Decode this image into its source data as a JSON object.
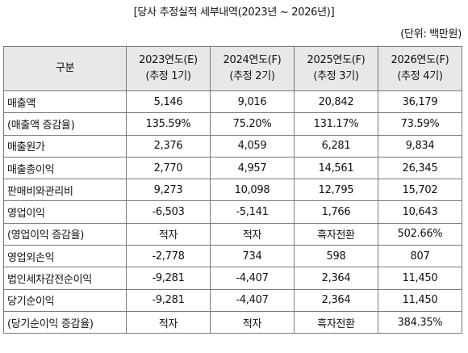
{
  "caption": "[당사 추정실적 세부내역(2023년 ~ 2026년)]",
  "unit_note": "(단위: 백만원)",
  "table": {
    "header": {
      "label": "구분",
      "columns": [
        {
          "year": "2023연도(E)",
          "note": "(추정 1기)"
        },
        {
          "year": "2024연도(F)",
          "note": "(추정 2기)"
        },
        {
          "year": "2025연도(F)",
          "note": "(추정 3기)"
        },
        {
          "year": "2026연도(F)",
          "note": "(추정 4기)"
        }
      ]
    },
    "rows": [
      {
        "label": "매출액",
        "values": [
          "5,146",
          "9,016",
          "20,842",
          "36,179"
        ]
      },
      {
        "label": "(매출액 증감율)",
        "values": [
          "135.59%",
          "75.20%",
          "131.17%",
          "73.59%"
        ]
      },
      {
        "label": "매출원가",
        "values": [
          "2,376",
          "4,059",
          "6,281",
          "9,834"
        ]
      },
      {
        "label": "매출총이익",
        "values": [
          "2,770",
          "4,957",
          "14,561",
          "26,345"
        ]
      },
      {
        "label": "판매비와관리비",
        "values": [
          "9,273",
          "10,098",
          "12,795",
          "15,702"
        ]
      },
      {
        "label": "영업이익",
        "values": [
          "-6,503",
          "-5,141",
          "1,766",
          "10,643"
        ]
      },
      {
        "label": "(영업이익 증감율)",
        "values": [
          "적자",
          "적자",
          "흑자전환",
          "502.66%"
        ]
      },
      {
        "label": "영업외손익",
        "values": [
          "-2,778",
          "734",
          "598",
          "807"
        ]
      },
      {
        "label": "법인세차감전순이익",
        "values": [
          "-9,281",
          "-4,407",
          "2,364",
          "11,450"
        ]
      },
      {
        "label": "당기순이익",
        "values": [
          "-9,281",
          "-4,407",
          "2,364",
          "11,450"
        ]
      },
      {
        "label": "(당기순이익 증감율)",
        "values": [
          "적자",
          "적자",
          "흑자전환",
          "384.35%"
        ]
      }
    ]
  }
}
